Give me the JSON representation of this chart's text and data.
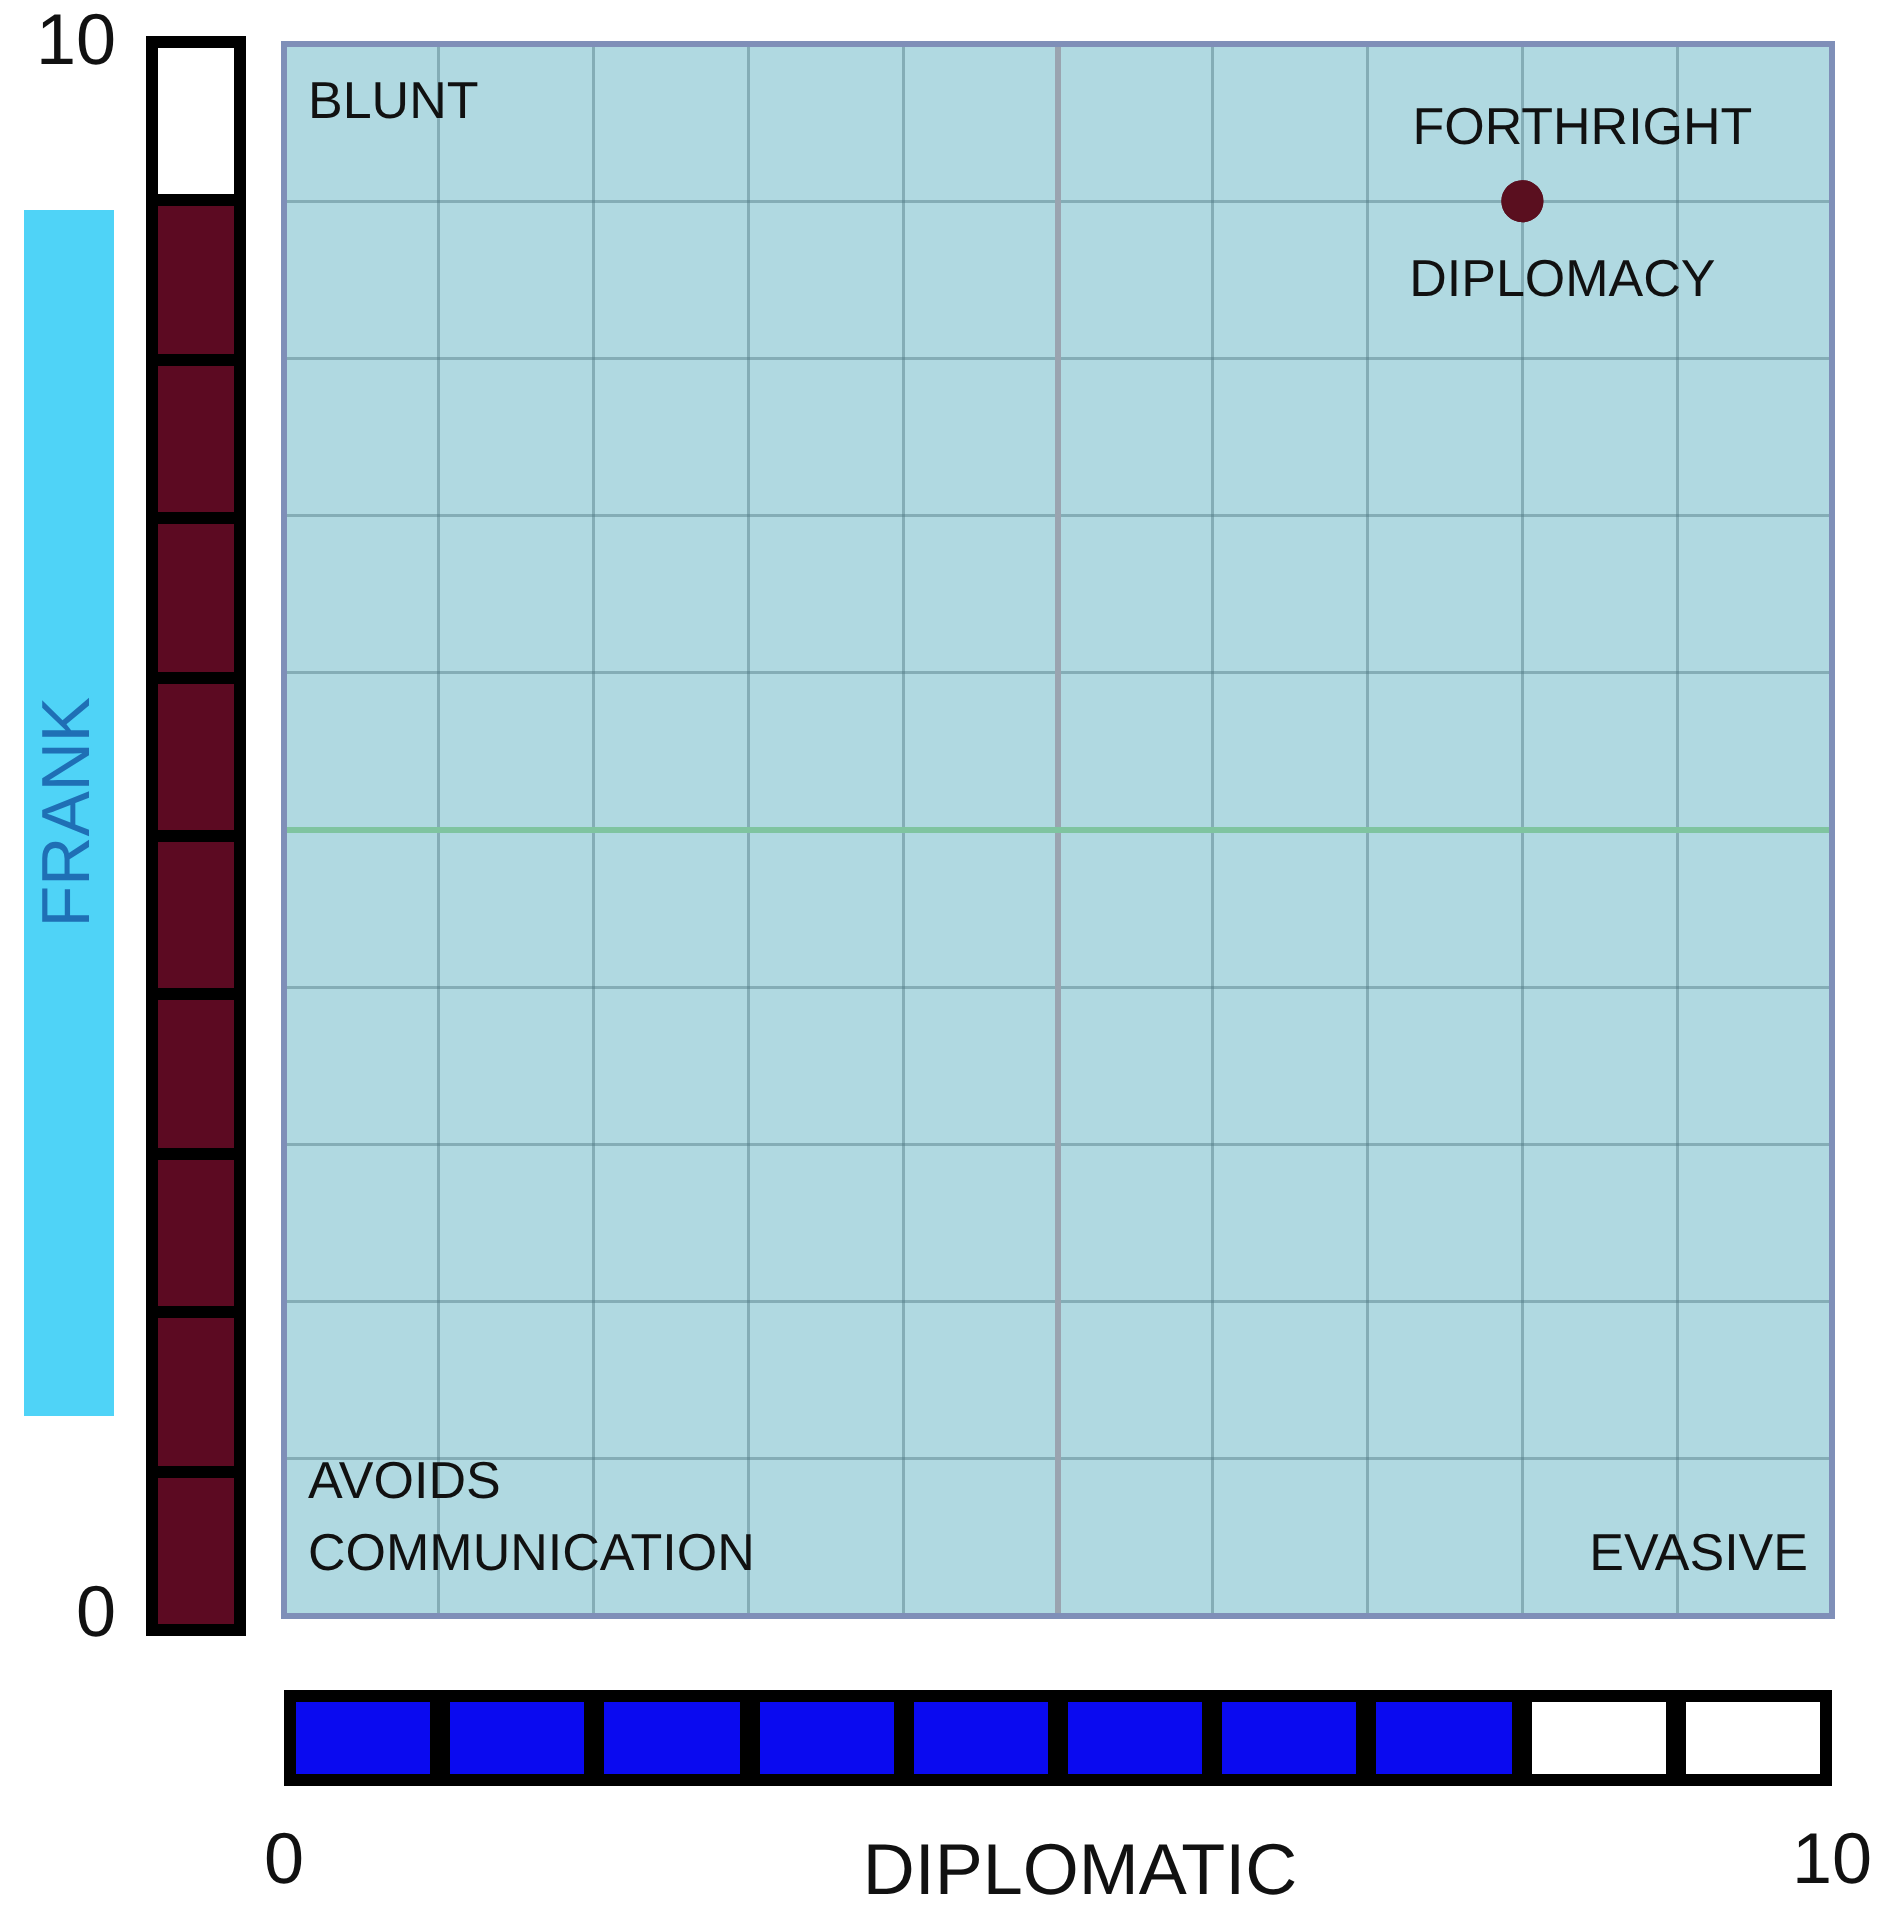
{
  "chart_data": {
    "type": "scatter",
    "xlabel": "DIPLOMATIC",
    "ylabel": "FRANK",
    "x": [
      8
    ],
    "series": [
      {
        "color": "#5a0f1f",
        "values": [
          9
        ]
      }
    ],
    "xlim": [
      0,
      10
    ],
    "ylim": [
      0,
      10
    ],
    "xticks": [
      0,
      {
        "value": 1,
        "label": null
      },
      {
        "value": 2,
        "label": null
      },
      {
        "value": 3,
        "label": null
      },
      {
        "value": 4,
        "label": null
      },
      {
        "value": 5,
        "label": null
      },
      {
        "value": 6,
        "label": null
      },
      {
        "value": 7,
        "label": null
      },
      {
        "value": 8,
        "label": null
      },
      {
        "value": 9,
        "label": null
      },
      10
    ],
    "yticks": [
      0,
      {
        "value": 1,
        "label": null
      },
      {
        "value": 2,
        "label": null
      },
      {
        "value": 3,
        "label": null
      },
      {
        "value": 4,
        "label": null
      },
      {
        "value": 5,
        "label": null
      },
      {
        "value": 6,
        "label": null
      },
      {
        "value": 7,
        "label": null
      },
      {
        "value": 8,
        "label": null
      },
      {
        "value": 9,
        "label": null
      },
      10
    ],
    "grid": true,
    "marker": "circle",
    "legend": false,
    "ref_lines": [
      {
        "axis": "x",
        "value": 5,
        "color": "#9aa4b0"
      },
      {
        "axis": "y",
        "value": 5,
        "color": "#7fc4a0"
      }
    ],
    "annotations": [
      "BLUNT",
      "AVOIDS COMMUNICATION",
      "EVASIVE",
      {
        "text": "FORTHRIGHT",
        "x": 8,
        "y": 9
      },
      {
        "text": "DIPLOMACY",
        "x": 8,
        "y": 9
      }
    ]
  }
}
